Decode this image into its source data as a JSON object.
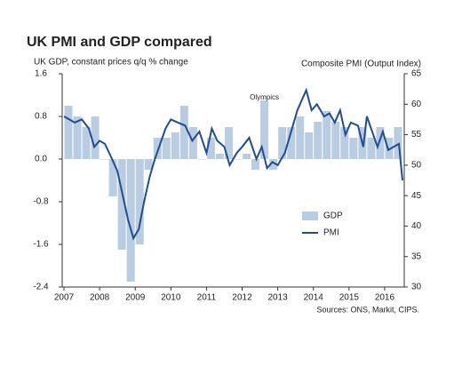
{
  "chart_data": {
    "type": "bar-line",
    "title": "UK PMI and GDP compared",
    "y_axis_label": "UK GDP, constant prices q/q % change",
    "y2_axis_label": "Composite PMI (Output Index)",
    "source": "Sources: ONS, Markit, CIPS.",
    "annotation": "Olympics",
    "xlim": [
      2007,
      2016.55
    ],
    "xticks": [
      2007,
      2008,
      2009,
      2010,
      2011,
      2012,
      2013,
      2014,
      2015,
      2016
    ],
    "ylim": [
      -2.4,
      1.6
    ],
    "yticks": [
      1.6,
      0.8,
      {
        "value": 0,
        "label": "0.0"
      },
      -0.8,
      -1.6,
      -2.4
    ],
    "y2lim": [
      30,
      65
    ],
    "y2ticks": [
      65,
      60,
      55,
      50,
      45,
      40,
      35,
      30
    ],
    "series": [
      {
        "name": "GDP",
        "type": "bar",
        "color": "#b9cde2",
        "x": [
          2007.125,
          2007.375,
          2007.625,
          2007.875,
          2008.125,
          2008.375,
          2008.625,
          2008.875,
          2009.125,
          2009.375,
          2009.625,
          2009.875,
          2010.125,
          2010.375,
          2010.625,
          2010.875,
          2011.125,
          2011.375,
          2011.625,
          2011.875,
          2012.125,
          2012.375,
          2012.625,
          2012.875,
          2013.125,
          2013.375,
          2013.625,
          2013.875,
          2014.125,
          2014.375,
          2014.625,
          2014.875,
          2015.125,
          2015.375,
          2015.625,
          2015.875,
          2016.125,
          2016.375
        ],
        "values": [
          1.0,
          0.8,
          0.6,
          0.8,
          0.0,
          -0.7,
          -1.7,
          -2.3,
          -1.6,
          -0.2,
          0.4,
          0.4,
          0.5,
          1.0,
          0.6,
          0.0,
          0.4,
          0.1,
          0.6,
          0.0,
          0.1,
          -0.2,
          1.1,
          -0.2,
          0.6,
          0.6,
          0.8,
          0.5,
          0.7,
          0.9,
          0.7,
          0.6,
          0.4,
          0.6,
          0.4,
          0.6,
          0.4,
          0.6
        ]
      },
      {
        "name": "PMI",
        "type": "line",
        "axis": "y2",
        "color": "#1f4d8f",
        "x": [
          2007.0,
          2007.15,
          2007.3,
          2007.5,
          2007.7,
          2007.85,
          2008.0,
          2008.15,
          2008.35,
          2008.5,
          2008.65,
          2008.8,
          2008.95,
          2009.1,
          2009.25,
          2009.4,
          2009.55,
          2009.7,
          2009.85,
          2010.0,
          2010.2,
          2010.4,
          2010.6,
          2010.8,
          2011.0,
          2011.15,
          2011.3,
          2011.5,
          2011.65,
          2011.85,
          2012.0,
          2012.2,
          2012.4,
          2012.55,
          2012.7,
          2012.85,
          2013.0,
          2013.2,
          2013.4,
          2013.55,
          2013.7,
          2013.8,
          2013.95,
          2014.1,
          2014.3,
          2014.45,
          2014.6,
          2014.75,
          2014.9,
          2015.05,
          2015.25,
          2015.4,
          2015.5,
          2015.65,
          2015.8,
          2015.95,
          2016.1,
          2016.25,
          2016.4,
          2016.5
        ],
        "values": [
          58,
          57.5,
          57,
          57.5,
          56,
          53,
          54,
          53.5,
          51,
          49,
          45,
          41,
          38,
          39.5,
          44,
          48,
          51,
          53.5,
          56,
          57.5,
          57,
          56.5,
          54,
          55.5,
          52,
          56,
          54,
          53,
          50,
          52,
          53,
          54.5,
          51,
          53,
          49.5,
          50.5,
          50,
          52,
          56,
          59,
          61,
          62.3,
          59,
          60,
          58,
          58.5,
          57,
          59,
          55,
          57,
          56.5,
          53,
          58,
          55.5,
          53,
          55.5,
          52.5,
          53,
          53.5,
          47.5
        ]
      }
    ],
    "legend": "lower-right"
  }
}
